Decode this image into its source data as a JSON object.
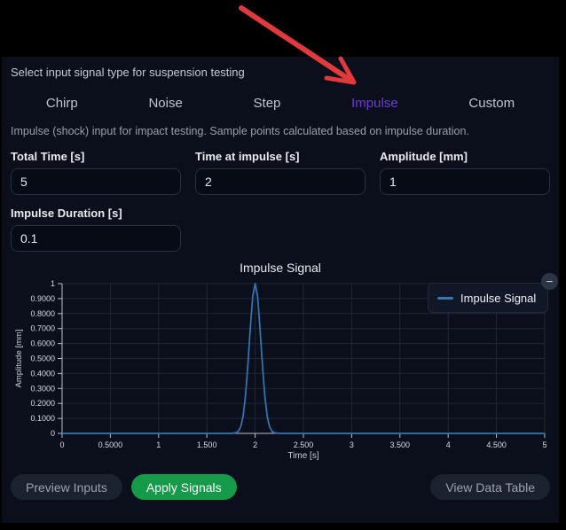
{
  "colors": {
    "accent": "#6d3ad4",
    "apply_green": "#149a48",
    "arrow_red": "#e03a3a",
    "panel_bg": "#0a0f1b",
    "series_blue": "#3178b5"
  },
  "annotation": {
    "type": "red-arrow",
    "points_at": "Impulse tab"
  },
  "panel": {
    "intro": "Select input signal type for suspension testing",
    "tabs": [
      {
        "label": "Chirp",
        "active": false
      },
      {
        "label": "Noise",
        "active": false
      },
      {
        "label": "Step",
        "active": false
      },
      {
        "label": "Impulse",
        "active": true
      },
      {
        "label": "Custom",
        "active": false
      }
    ],
    "description": "Impulse (shock) input for impact testing. Sample points calculated based on impulse duration.",
    "fields": [
      {
        "label": "Total Time [s]",
        "value": "5"
      },
      {
        "label": "Time at impulse [s]",
        "value": "2"
      },
      {
        "label": "Amplitude [mm]",
        "value": "1"
      },
      {
        "label": "Impulse Duration [s]",
        "value": "0.1"
      }
    ],
    "buttons": {
      "preview": "Preview Inputs",
      "apply": "Apply Signals",
      "view_table": "View Data Table"
    }
  },
  "chart_data": {
    "type": "line",
    "title": "Impulse Signal",
    "xlabel": "Time [s]",
    "ylabel": "Amplitude [mm]",
    "xlim": [
      0,
      5
    ],
    "ylim": [
      0,
      1
    ],
    "grid": true,
    "xticks": [
      0,
      0.5,
      1,
      1.5,
      2,
      2.5,
      3,
      3.5,
      4,
      4.5,
      5
    ],
    "xtick_labels": [
      "0",
      "0.5000",
      "1",
      "1.500",
      "2",
      "2.500",
      "3",
      "3.500",
      "4",
      "4.500",
      "5"
    ],
    "yticks": [
      0,
      0.1,
      0.2,
      0.3,
      0.4,
      0.5,
      0.6,
      0.7,
      0.8,
      0.9,
      1
    ],
    "ytick_labels": [
      "0",
      "0.1000",
      "0.2000",
      "0.3000",
      "0.4000",
      "0.5000",
      "0.6000",
      "0.7000",
      "0.8000",
      "0.9000",
      "1"
    ],
    "legend": {
      "position": "top-right",
      "collapse_icon": "−"
    },
    "peak": {
      "time": 2,
      "amplitude": 1,
      "duration": 0.1
    },
    "series": [
      {
        "name": "Impulse Signal",
        "color": "#3178b5",
        "points": [
          [
            0,
            0
          ],
          [
            1,
            0
          ],
          [
            1.5,
            0
          ],
          [
            1.7,
            0
          ],
          [
            1.75,
            0.0002
          ],
          [
            1.8,
            0.004
          ],
          [
            1.825,
            0.014
          ],
          [
            1.85,
            0.044
          ],
          [
            1.875,
            0.114
          ],
          [
            1.9,
            0.249
          ],
          [
            1.925,
            0.458
          ],
          [
            1.95,
            0.707
          ],
          [
            1.975,
            0.917
          ],
          [
            2,
            1
          ],
          [
            2.025,
            0.917
          ],
          [
            2.05,
            0.707
          ],
          [
            2.075,
            0.458
          ],
          [
            2.1,
            0.249
          ],
          [
            2.125,
            0.114
          ],
          [
            2.15,
            0.044
          ],
          [
            2.175,
            0.014
          ],
          [
            2.2,
            0.004
          ],
          [
            2.25,
            0.0002
          ],
          [
            2.3,
            0
          ],
          [
            2.5,
            0
          ],
          [
            3,
            0
          ],
          [
            4,
            0
          ],
          [
            5,
            0
          ]
        ]
      }
    ]
  }
}
